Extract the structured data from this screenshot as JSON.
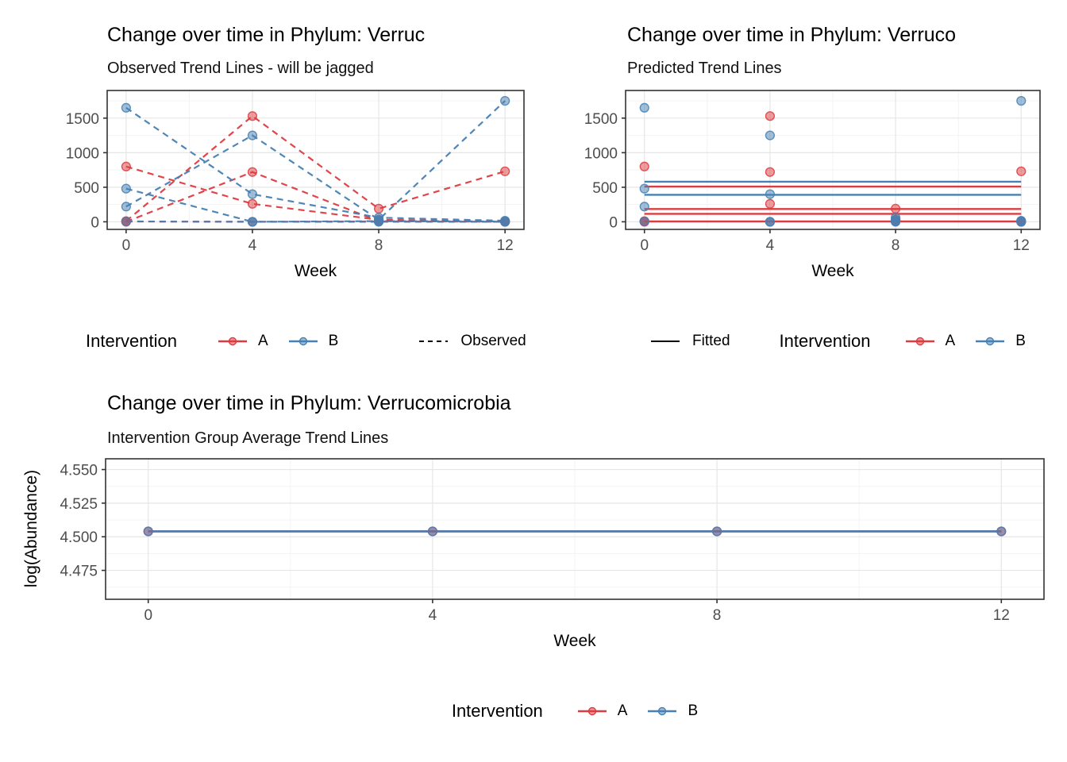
{
  "palette": {
    "red": "#DD3B40",
    "blue": "#4680B4",
    "black": "#000000",
    "axis_text": "#4D4D4D",
    "grid_major": "#E6E6E6",
    "grid_minor": "#F3F3F3",
    "panel_border": "#333333",
    "background": "#FFFFFF"
  },
  "chart_data": [
    {
      "type": "line",
      "title": "Change over time in Phylum: Verruc",
      "subtitle": "Observed Trend Lines - will be jagged",
      "xlabel": "Week",
      "line_style": "dashed",
      "grid": true,
      "legend_position": "bottom",
      "xlim": [
        -0.6,
        12.6
      ],
      "ylim": [
        -110,
        1900
      ],
      "x_ticks": [
        0,
        4,
        8,
        12
      ],
      "x_tick_labels": [
        "0",
        "4",
        "8",
        "12"
      ],
      "x_minor": [
        2,
        6,
        10
      ],
      "y_ticks": [
        0,
        500,
        1000,
        1500
      ],
      "y_tick_labels": [
        "0",
        "500",
        "1000",
        "1500"
      ],
      "y_minor": [
        250,
        750,
        1250,
        1750
      ],
      "weeks": [
        0,
        4,
        8,
        12
      ],
      "subjects": [
        {
          "group": "A",
          "values": [
            800,
            260,
            30,
            5
          ]
        },
        {
          "group": "A",
          "values": [
            10,
            1530,
            190,
            730
          ]
        },
        {
          "group": "A",
          "values": [
            0,
            720,
            10,
            0
          ]
        },
        {
          "group": "A",
          "values": [
            5,
            0,
            5,
            0
          ]
        },
        {
          "group": "B",
          "values": [
            1650,
            400,
            60,
            15
          ]
        },
        {
          "group": "B",
          "values": [
            220,
            1250,
            30,
            1750
          ]
        },
        {
          "group": "B",
          "values": [
            480,
            0,
            10,
            5
          ]
        },
        {
          "group": "B",
          "values": [
            5,
            0,
            0,
            0
          ]
        }
      ]
    },
    {
      "type": "scatter",
      "title": "Change over time in Phylum: Verruco",
      "subtitle": "Predicted Trend Lines",
      "xlabel": "Week",
      "grid": true,
      "legend_position": "bottom",
      "xlim": [
        -0.6,
        12.6
      ],
      "ylim": [
        -110,
        1900
      ],
      "x_ticks": [
        0,
        4,
        8,
        12
      ],
      "x_tick_labels": [
        "0",
        "4",
        "8",
        "12"
      ],
      "x_minor": [
        2,
        6,
        10
      ],
      "y_ticks": [
        0,
        500,
        1000,
        1500
      ],
      "y_tick_labels": [
        "0",
        "500",
        "1000",
        "1500"
      ],
      "y_minor": [
        250,
        750,
        1250,
        1750
      ],
      "weeks": [
        0,
        4,
        8,
        12
      ],
      "points": [
        {
          "group": "A",
          "values": [
            800,
            260,
            30,
            5
          ]
        },
        {
          "group": "A",
          "values": [
            10,
            1530,
            190,
            730
          ]
        },
        {
          "group": "A",
          "values": [
            0,
            720,
            10,
            0
          ]
        },
        {
          "group": "A",
          "values": [
            5,
            0,
            5,
            0
          ]
        },
        {
          "group": "B",
          "values": [
            1650,
            400,
            60,
            15
          ]
        },
        {
          "group": "B",
          "values": [
            220,
            1250,
            30,
            1750
          ]
        },
        {
          "group": "B",
          "values": [
            480,
            0,
            10,
            5
          ]
        },
        {
          "group": "B",
          "values": [
            5,
            0,
            0,
            0
          ]
        }
      ],
      "fitted": [
        {
          "group": "B",
          "value": 580
        },
        {
          "group": "A",
          "value": 510
        },
        {
          "group": "B",
          "value": 390
        },
        {
          "group": "A",
          "value": 185
        },
        {
          "group": "A",
          "value": 115
        },
        {
          "group": "A",
          "value": 5
        }
      ],
      "fitted_span": [
        0,
        12
      ]
    },
    {
      "type": "line",
      "title": "Change over time in Phylum: Verrucomicrobia",
      "subtitle": "Intervention Group Average Trend Lines",
      "xlabel": "Week",
      "ylabel": "log(Abundance)",
      "line_style": "solid",
      "grid": true,
      "legend_position": "bottom",
      "xlim": [
        -0.6,
        12.6
      ],
      "ylim": [
        4.4535,
        4.558
      ],
      "x_ticks": [
        0,
        4,
        8,
        12
      ],
      "x_tick_labels": [
        "0",
        "4",
        "8",
        "12"
      ],
      "x_minor": [
        2,
        6,
        10
      ],
      "y_ticks": [
        4.475,
        4.5,
        4.525,
        4.55
      ],
      "y_tick_labels": [
        "4.475",
        "4.500",
        "4.525",
        "4.550"
      ],
      "y_minor": [
        4.4625,
        4.4875,
        4.5125,
        4.5375
      ],
      "weeks": [
        0,
        4,
        8,
        12
      ],
      "group_lines": [
        {
          "group": "A",
          "value": 4.504
        },
        {
          "group": "B",
          "value": 4.504
        }
      ],
      "points": [
        {
          "group": "A",
          "values": [
            4.504,
            4.504,
            4.504,
            4.504
          ]
        },
        {
          "group": "B",
          "values": [
            4.504,
            4.504,
            4.504,
            4.504
          ]
        }
      ]
    }
  ],
  "legends": {
    "observed": {
      "title": "Intervention",
      "items": [
        {
          "label": "A",
          "color": "red"
        },
        {
          "label": "B",
          "color": "blue"
        }
      ],
      "linetype": {
        "label": "Observed",
        "style": "dashed"
      }
    },
    "predicted": {
      "linetype": {
        "label": "Fitted",
        "style": "solid"
      },
      "title": "Intervention",
      "items": [
        {
          "label": "A",
          "color": "red"
        },
        {
          "label": "B",
          "color": "blue"
        }
      ]
    },
    "average": {
      "title": "Intervention",
      "items": [
        {
          "label": "A",
          "color": "red"
        },
        {
          "label": "B",
          "color": "blue"
        }
      ]
    }
  }
}
